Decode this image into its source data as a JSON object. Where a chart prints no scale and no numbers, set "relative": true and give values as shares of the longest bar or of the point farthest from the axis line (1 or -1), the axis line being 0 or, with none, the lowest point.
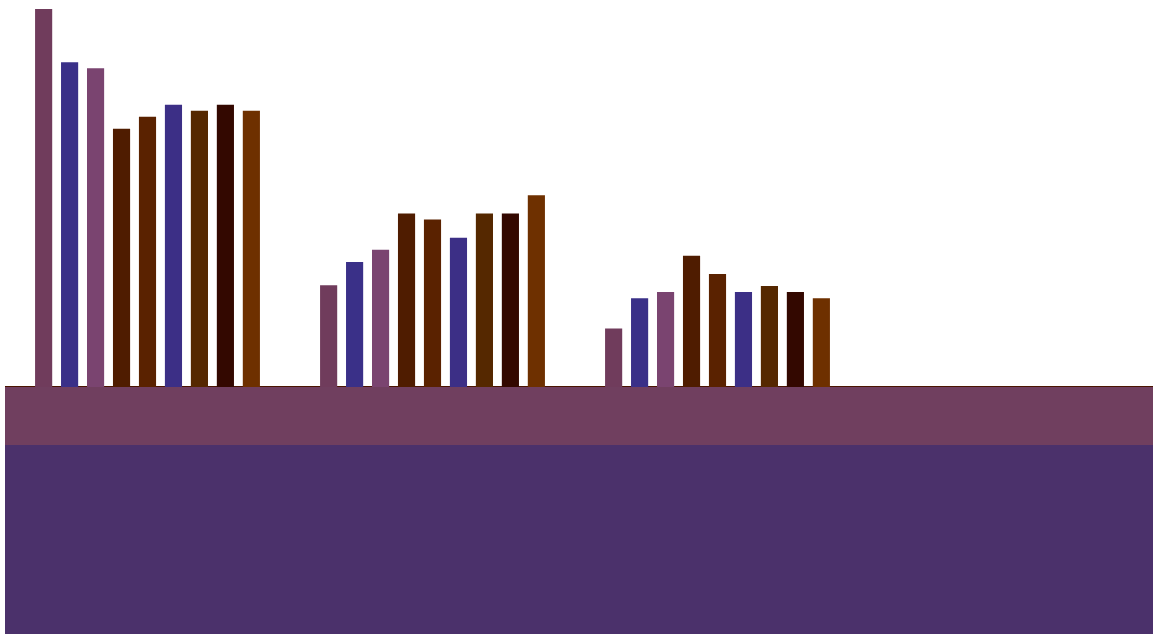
{
  "chart_data": {
    "type": "bar",
    "relative": true,
    "categories": [
      null,
      null,
      null
    ],
    "grid": false,
    "legend": false,
    "series": [
      {
        "color": "#703c5c",
        "values": [
          1,
          0.269,
          0.155
        ]
      },
      {
        "color": "#3a3088",
        "values": [
          0.859,
          0.331,
          0.235
        ]
      },
      {
        "color": "#7a4470",
        "values": [
          0.843,
          0.363,
          0.251
        ]
      },
      {
        "color": "#4f1c00",
        "values": [
          0.683,
          0.459,
          0.347
        ]
      },
      {
        "color": "#5a2200",
        "values": [
          0.715,
          0.443,
          0.299
        ]
      },
      {
        "color": "#3c2f86",
        "values": [
          0.747,
          0.395,
          0.251
        ]
      },
      {
        "color": "#552800",
        "values": [
          0.731,
          0.459,
          0.267
        ]
      },
      {
        "color": "#330800",
        "values": [
          0.747,
          0.459,
          0.251
        ]
      },
      {
        "color": "#6e3000",
        "values": [
          0.731,
          0.507,
          0.235
        ]
      }
    ]
  }
}
